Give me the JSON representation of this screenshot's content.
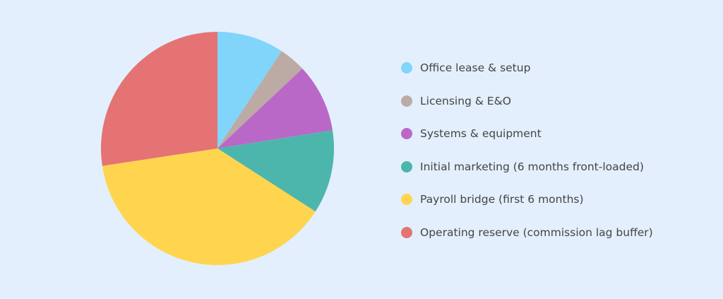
{
  "chart_data": {
    "type": "pie",
    "title": "",
    "start_angle": 0,
    "direction": "clockwise",
    "legend_position": "right",
    "slices": [
      {
        "label": "Office lease & setup",
        "value": 9.3,
        "color": "#81d4fa"
      },
      {
        "label": "Licensing & E&O",
        "value": 3.7,
        "color": "#bcaaa4"
      },
      {
        "label": "Systems & equipment",
        "value": 9.5,
        "color": "#ba68c8"
      },
      {
        "label": "Initial marketing (6 months front-loaded)",
        "value": 11.6,
        "color": "#4db6ac"
      },
      {
        "label": "Payroll bridge (first 6 months)",
        "value": 38.5,
        "color": "#ffd54f"
      },
      {
        "label": "Operating reserve (commission lag buffer)",
        "value": 27.4,
        "color": "#e57373"
      }
    ]
  },
  "legend": {
    "items": [
      {
        "label": "Office lease & setup",
        "color": "#81d4fa"
      },
      {
        "label": "Licensing & E&O",
        "color": "#bcaaa4"
      },
      {
        "label": "Systems & equipment",
        "color": "#ba68c8"
      },
      {
        "label": "Initial marketing (6 months front-loaded)",
        "color": "#4db6ac"
      },
      {
        "label": "Payroll bridge (first 6 months)",
        "color": "#ffd54f"
      },
      {
        "label": "Operating reserve (commission lag buffer)",
        "color": "#e57373"
      }
    ]
  }
}
